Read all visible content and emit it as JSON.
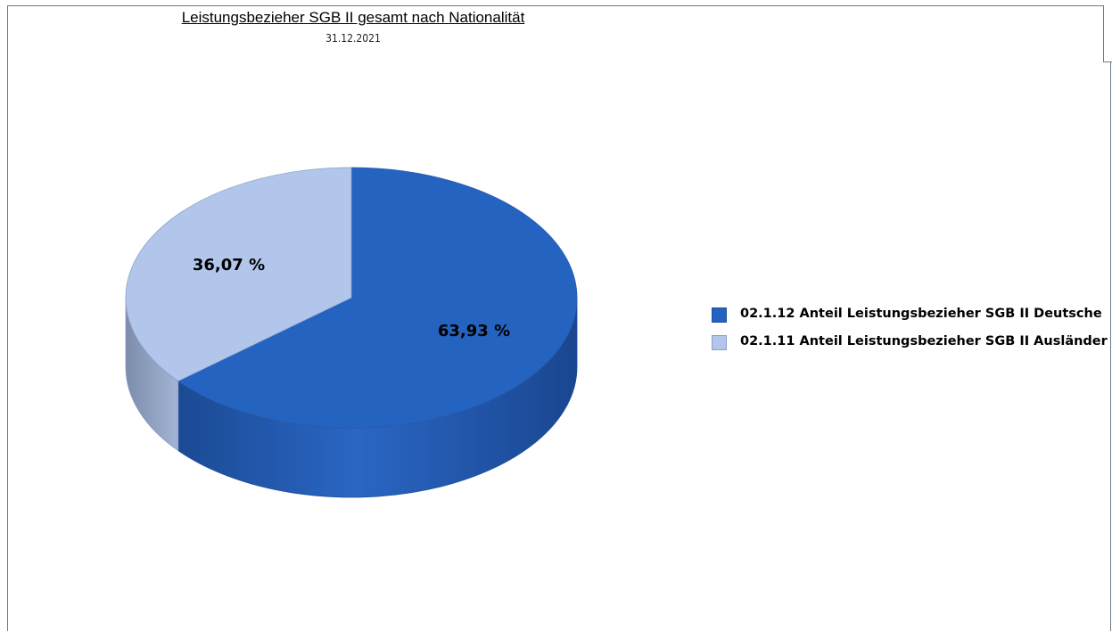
{
  "chart_data": {
    "type": "pie",
    "title": "Leistungsbezieher SGB II gesamt nach Nationalität",
    "subtitle": "31.12.2021",
    "slices": [
      {
        "name": "02.1.12 Anteil Leistungsbezieher SGB II Deutsche",
        "value": 63.93,
        "label": "63,93 %",
        "color": "#2563c0",
        "side_color": "#1d4f9c"
      },
      {
        "name": "02.1.11 Anteil Leistungsbezieher SGB II Ausländer",
        "value": 36.07,
        "label": "36,07 %",
        "color": "#b1c6ea",
        "side_color": "#8f9fbd"
      }
    ],
    "legend_position": "right"
  }
}
